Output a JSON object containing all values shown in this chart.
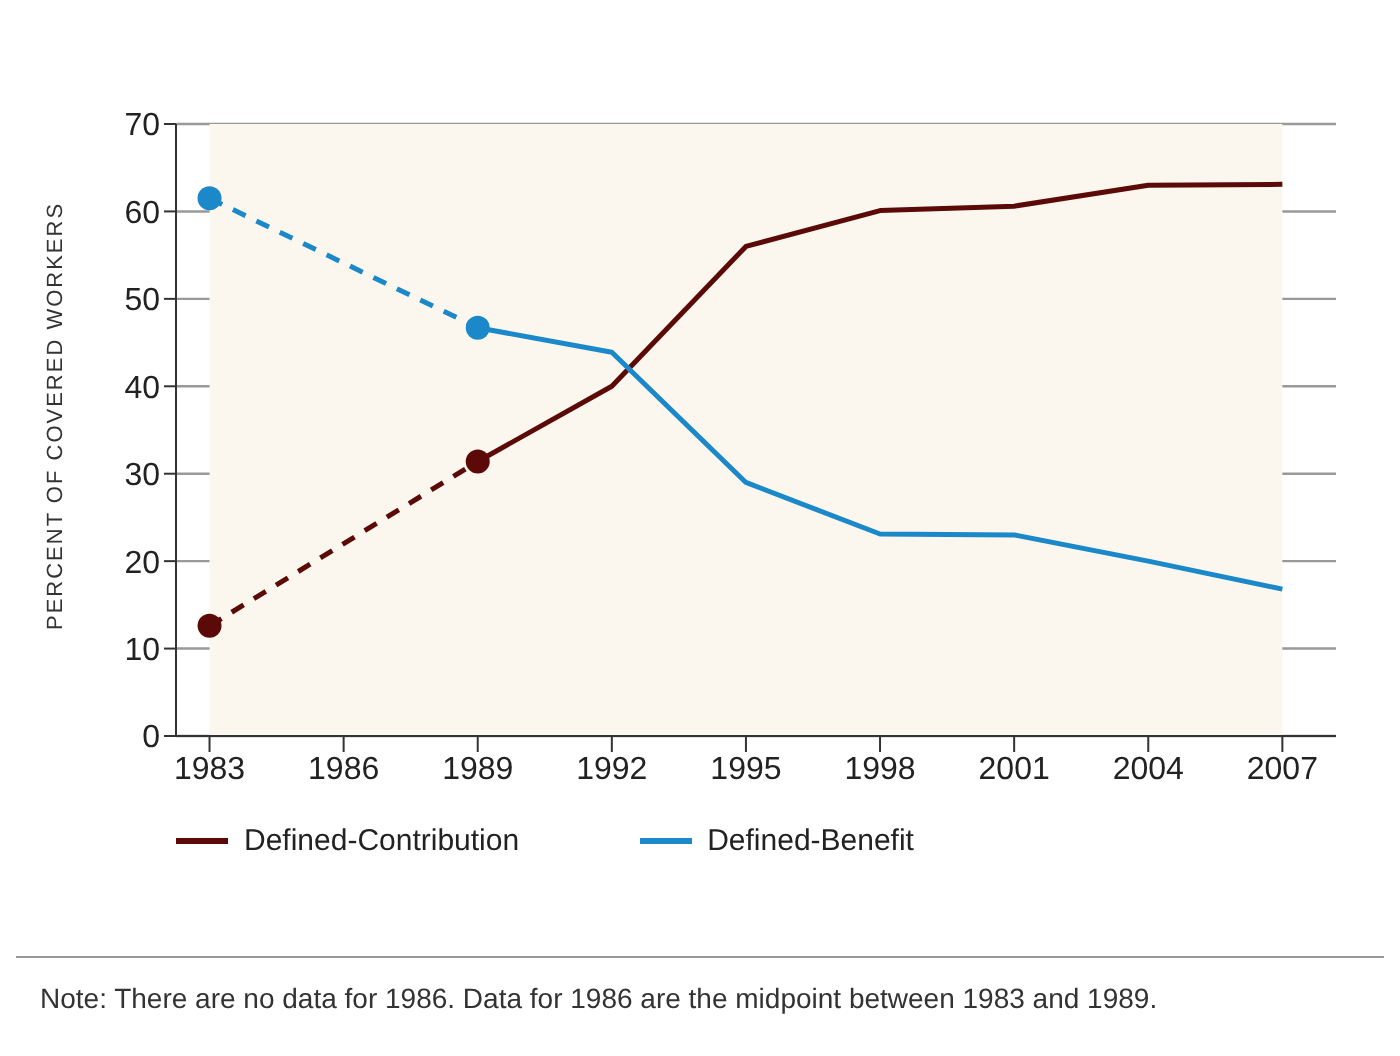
{
  "chart_data": {
    "type": "line",
    "ylabel": "PERCENT OF COVERED WORKERS",
    "categories": [
      "1983",
      "1986",
      "1989",
      "1992",
      "1995",
      "1998",
      "2001",
      "2004",
      "2007"
    ],
    "series": [
      {
        "color": "#5c0a07",
        "line_style": "dashed",
        "marker": "circle",
        "values": [
          12.6,
          null,
          31.4,
          null,
          null,
          null,
          null,
          null,
          null
        ]
      },
      {
        "color": "#1a88c9",
        "line_style": "dashed",
        "marker": "circle",
        "values": [
          61.5,
          null,
          46.7,
          null,
          null,
          null,
          null,
          null,
          null
        ]
      },
      {
        "name": "Defined-Contribution",
        "color": "#5c0a07",
        "line_style": "solid",
        "marker": "none",
        "values": [
          null,
          null,
          31.4,
          40,
          56,
          60.1,
          60.6,
          63,
          63.1
        ]
      },
      {
        "name": "Defined-Benefit",
        "color": "#1a88c9",
        "line_style": "solid",
        "marker": "none",
        "values": [
          null,
          null,
          46.7,
          43.9,
          29,
          23.1,
          23,
          20,
          16.8
        ]
      }
    ],
    "ylim": [
      0,
      70
    ],
    "yticks": [
      0,
      10,
      20,
      30,
      40,
      50,
      60,
      70
    ],
    "grid": "y",
    "legend": "bottom",
    "annotations": [
      "Note: There are no data for 1986. Data for 1986 are the midpoint between 1983 and 1989."
    ]
  }
}
